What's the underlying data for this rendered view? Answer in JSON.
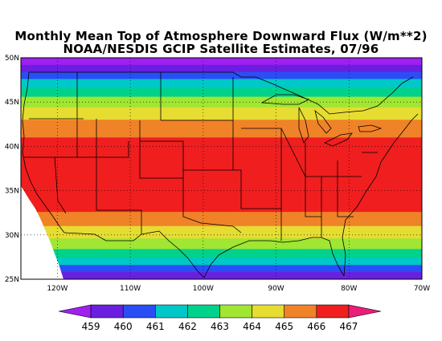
{
  "title_line1": "Monthly Mean Top of Atmosphere Downward Flux (W/m**2)",
  "title_line2": "NOAA/NESDIS GCIP Satellite Estimates, 07/96",
  "lat_labels": [
    "50N",
    "45N",
    "40N",
    "35N",
    "30N",
    "25N"
  ],
  "lat_values": [
    50,
    45,
    40,
    35,
    30,
    25
  ],
  "lon_labels": [
    "120W",
    "110W",
    "100W",
    "90W",
    "80W",
    "70W"
  ],
  "lon_values": [
    -120,
    -110,
    -100,
    -90,
    -80,
    -70
  ],
  "map_extent": {
    "lon_min": -125,
    "lon_max": -70,
    "lat_min": 25,
    "lat_max": 50
  },
  "colorbar": {
    "labels": [
      "459",
      "460",
      "461",
      "462",
      "463",
      "464",
      "465",
      "466",
      "467"
    ],
    "colors": [
      "#a020f0",
      "#6a1fe0",
      "#2a4ef5",
      "#00c8c8",
      "#00d28c",
      "#a0e632",
      "#e6dc32",
      "#f08228",
      "#f01e1e",
      "#e81e78"
    ]
  },
  "bands": [
    {
      "lat_from": 49.2,
      "lat_to": 50.0,
      "color": "#a020f0"
    },
    {
      "lat_from": 48.4,
      "lat_to": 49.2,
      "color": "#6a1fe0"
    },
    {
      "lat_from": 47.6,
      "lat_to": 48.4,
      "color": "#2a4ef5"
    },
    {
      "lat_from": 46.6,
      "lat_to": 47.6,
      "color": "#00c8c8"
    },
    {
      "lat_from": 45.6,
      "lat_to": 46.6,
      "color": "#00d28c"
    },
    {
      "lat_from": 44.4,
      "lat_to": 45.6,
      "color": "#a0e632"
    },
    {
      "lat_from": 43.0,
      "lat_to": 44.4,
      "color": "#e6dc32"
    },
    {
      "lat_from": 41.0,
      "lat_to": 43.0,
      "color": "#f08228"
    },
    {
      "lat_from": 32.6,
      "lat_to": 41.0,
      "color": "#f01e1e"
    },
    {
      "lat_from": 31.0,
      "lat_to": 32.6,
      "color": "#f08228"
    },
    {
      "lat_from": 29.6,
      "lat_to": 31.0,
      "color": "#e6dc32"
    },
    {
      "lat_from": 28.4,
      "lat_to": 29.6,
      "color": "#a0e632"
    },
    {
      "lat_from": 27.4,
      "lat_to": 28.4,
      "color": "#00d28c"
    },
    {
      "lat_from": 26.6,
      "lat_to": 27.4,
      "color": "#00c8c8"
    },
    {
      "lat_from": 25.8,
      "lat_to": 26.6,
      "color": "#2a4ef5"
    },
    {
      "lat_from": 25.0,
      "lat_to": 25.8,
      "color": "#6a1fe0"
    }
  ]
}
